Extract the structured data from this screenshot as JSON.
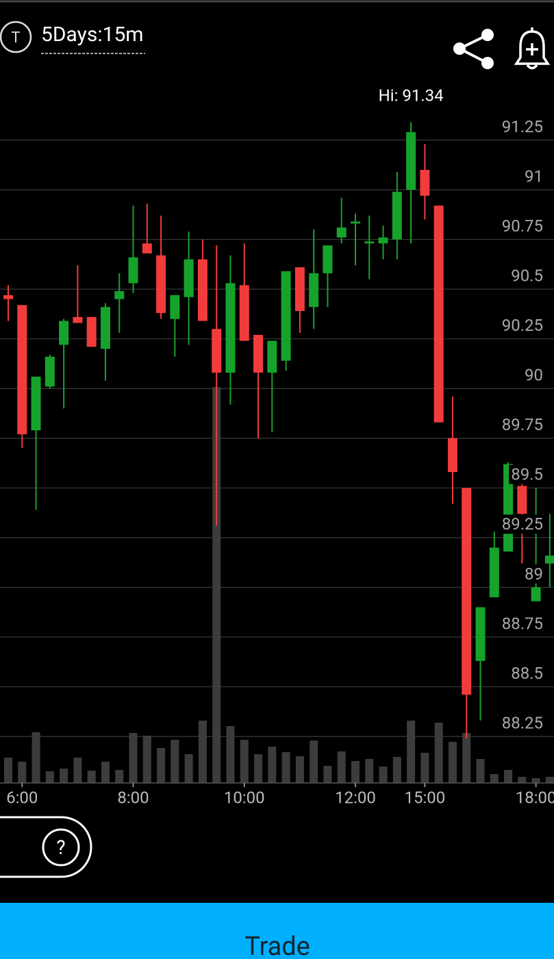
{
  "header": {
    "icon": "T",
    "timeframe": "5Days:15m"
  },
  "chart_data": {
    "type": "candlestick",
    "annotation": "Hi: 91.34",
    "categories": [
      null,
      "6:00",
      null,
      null,
      null,
      null,
      null,
      null,
      null,
      "8:00",
      null,
      null,
      null,
      null,
      null,
      null,
      null,
      "10:00",
      null,
      null,
      null,
      null,
      null,
      null,
      null,
      "12:00",
      null,
      null,
      null,
      null,
      "15:00",
      null,
      null,
      null,
      null,
      null,
      null,
      null,
      "18:00",
      null
    ],
    "open": [
      90.47,
      90.42,
      89.79,
      90.01,
      90.22,
      90.36,
      90.36,
      90.2,
      90.45,
      90.53,
      90.73,
      90.67,
      90.35,
      90.46,
      90.65,
      90.3,
      90.08,
      90.52,
      90.27,
      90.08,
      90.14,
      90.61,
      90.41,
      90.58,
      90.76,
      90.83,
      90.73,
      90.73,
      90.75,
      91.0,
      91.1,
      90.92,
      89.75,
      89.5,
      88.63,
      88.95,
      89.18,
      89.51,
      88.93,
      89.12
    ],
    "high": [
      90.52,
      90.42,
      90.06,
      90.17,
      90.35,
      90.62,
      90.36,
      90.43,
      90.58,
      90.92,
      90.93,
      90.87,
      90.47,
      90.79,
      90.75,
      90.72,
      90.67,
      90.73,
      90.27,
      90.24,
      90.59,
      90.61,
      90.8,
      90.72,
      90.96,
      90.88,
      90.87,
      90.82,
      91.09,
      91.34,
      91.23,
      90.92,
      89.96,
      89.5,
      88.9,
      89.28,
      89.63,
      89.52,
      89.5,
      89.37
    ],
    "low": [
      90.34,
      89.7,
      89.39,
      90.0,
      89.9,
      90.33,
      90.21,
      90.04,
      90.28,
      90.48,
      90.68,
      90.35,
      90.16,
      90.22,
      90.34,
      89.31,
      89.92,
      90.24,
      89.75,
      89.78,
      90.09,
      90.28,
      90.3,
      90.41,
      90.73,
      90.62,
      90.55,
      90.65,
      90.65,
      90.73,
      90.85,
      89.83,
      89.42,
      88.24,
      88.33,
      88.95,
      89.18,
      89.12,
      88.93,
      89.0
    ],
    "close": [
      90.45,
      89.77,
      90.06,
      90.16,
      90.34,
      90.33,
      90.21,
      90.41,
      90.49,
      90.66,
      90.68,
      90.38,
      90.47,
      90.65,
      90.34,
      90.08,
      90.53,
      90.24,
      90.08,
      90.24,
      90.59,
      90.39,
      90.58,
      90.72,
      90.81,
      90.84,
      90.74,
      90.76,
      90.99,
      91.29,
      90.97,
      89.83,
      89.58,
      88.46,
      88.9,
      89.2,
      89.62,
      89.37,
      89.0,
      89.16
    ],
    "volume": [
      37,
      31,
      74,
      17,
      21,
      37,
      18,
      31,
      19,
      73,
      69,
      51,
      63,
      42,
      91,
      578,
      83,
      63,
      42,
      53,
      45,
      39,
      62,
      25,
      46,
      32,
      35,
      24,
      38,
      91,
      44,
      88,
      60,
      73,
      35,
      13,
      19,
      9,
      7,
      9
    ],
    "up_color": "#16a32c",
    "down_color": "#f23c3c",
    "volume_color": "#3c3c3c",
    "ylim": [
      88.016,
      91.61
    ],
    "yticks": [
      91.25,
      91,
      90.75,
      90.5,
      90.25,
      90,
      89.75,
      89.5,
      89.25,
      89,
      88.75,
      88.5,
      88.25
    ],
    "grid": true
  },
  "help_button": "?",
  "trade_button": "Trade"
}
